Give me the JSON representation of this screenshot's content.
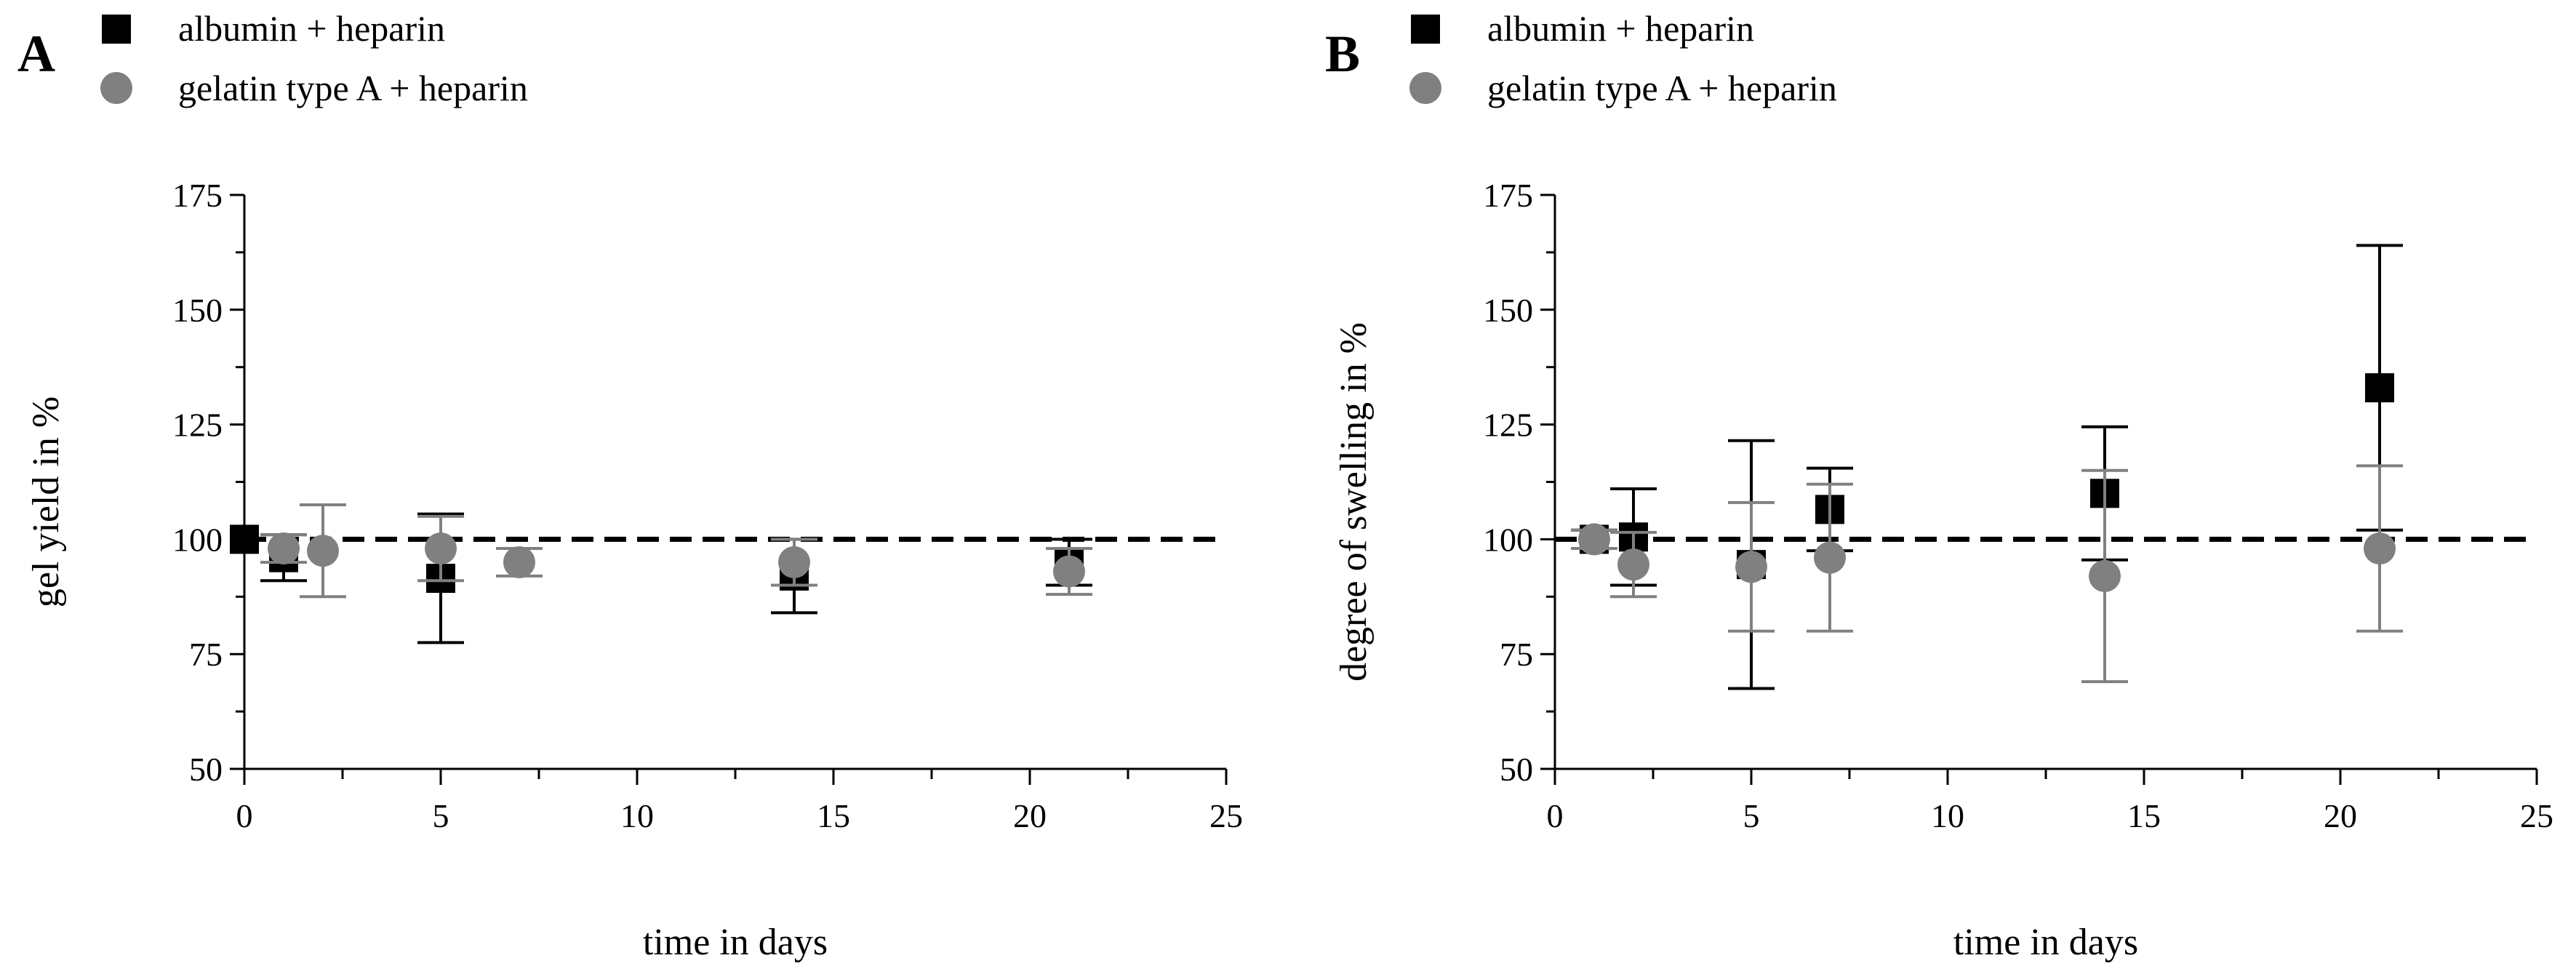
{
  "chart_data": [
    {
      "type": "scatter",
      "panel": "A",
      "xlabel": "time in days",
      "ylabel": "gel yield in %",
      "xlim": [
        0,
        25
      ],
      "ylim": [
        50,
        175
      ],
      "xticks": [
        0,
        5,
        10,
        15,
        20,
        25
      ],
      "yticks": [
        50,
        75,
        100,
        125,
        150,
        175
      ],
      "grid": false,
      "reference_line": {
        "y": 100,
        "style": "dashed"
      },
      "legend": {
        "placement": "top-left"
      },
      "series": [
        {
          "name": "albumin + heparin",
          "marker": "square",
          "color": "#000000",
          "x": [
            0,
            1,
            5,
            14,
            21
          ],
          "y": [
            100,
            96,
            91.5,
            92,
            95
          ],
          "err": [
            0,
            5,
            14,
            8,
            5
          ]
        },
        {
          "name": "gelatin type A + heparin",
          "marker": "circle",
          "color": "#808080",
          "x": [
            1,
            2,
            5,
            7,
            14,
            21
          ],
          "y": [
            98,
            97.5,
            98,
            95,
            95,
            93
          ],
          "err": [
            3,
            10,
            7,
            3,
            5,
            5
          ]
        }
      ]
    },
    {
      "type": "scatter",
      "panel": "B",
      "xlabel": "time in days",
      "ylabel": "degree of swelling in %",
      "xlim": [
        0,
        25
      ],
      "ylim": [
        50,
        175
      ],
      "xticks": [
        0,
        5,
        10,
        15,
        20,
        25
      ],
      "yticks": [
        50,
        75,
        100,
        125,
        150,
        175
      ],
      "grid": false,
      "reference_line": {
        "y": 100,
        "style": "dashed"
      },
      "legend": {
        "placement": "top-left"
      },
      "series": [
        {
          "name": "albumin + heparin",
          "marker": "square",
          "color": "#000000",
          "x": [
            1,
            2,
            5,
            7,
            14,
            21
          ],
          "y": [
            100,
            100.5,
            94.5,
            106.5,
            110,
            133
          ],
          "err": [
            2,
            10.5,
            27,
            9,
            14.5,
            31
          ]
        },
        {
          "name": "gelatin type A + heparin",
          "marker": "circle",
          "color": "#808080",
          "x": [
            1,
            2,
            5,
            7,
            14,
            21
          ],
          "y": [
            100,
            94.5,
            94,
            96,
            92,
            98
          ],
          "err": [
            2,
            7,
            14,
            16,
            23,
            18
          ]
        }
      ]
    }
  ]
}
